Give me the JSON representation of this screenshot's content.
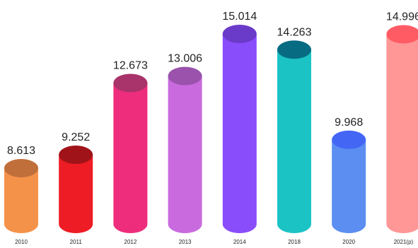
{
  "chart_data": {
    "type": "bar",
    "title": "",
    "xlabel": "",
    "ylabel": "",
    "categories": [
      "2010",
      "2011",
      "2012",
      "2013",
      "2014",
      "2018",
      "2020",
      "2021(p)"
    ],
    "values": [
      8.613,
      9.252,
      12.673,
      13.006,
      15.014,
      14.263,
      9.968,
      14.996
    ],
    "value_labels": [
      "8.613",
      "9.252",
      "12.673",
      "13.006",
      "15.014",
      "14.263",
      "9.968",
      "14.996"
    ],
    "ylim": [
      7.3,
      15.014
    ],
    "bar_style": "3d-cylinder",
    "grid": false,
    "legend": "none",
    "colors": [
      {
        "body": "#F5924A",
        "top": "#C06F3A"
      },
      {
        "body": "#EE1C24",
        "top": "#A01419"
      },
      {
        "body": "#EE2D7D",
        "top": "#A9336B"
      },
      {
        "body": "#C96BDE",
        "top": "#9A52AC"
      },
      {
        "body": "#8A4DFB",
        "top": "#6A3AC8"
      },
      {
        "body": "#1CC3C5",
        "top": "#076C82"
      },
      {
        "body": "#5B8EF0",
        "top": "#4366F5"
      },
      {
        "body": "#FF9797",
        "top": "#FF5B64"
      }
    ]
  }
}
